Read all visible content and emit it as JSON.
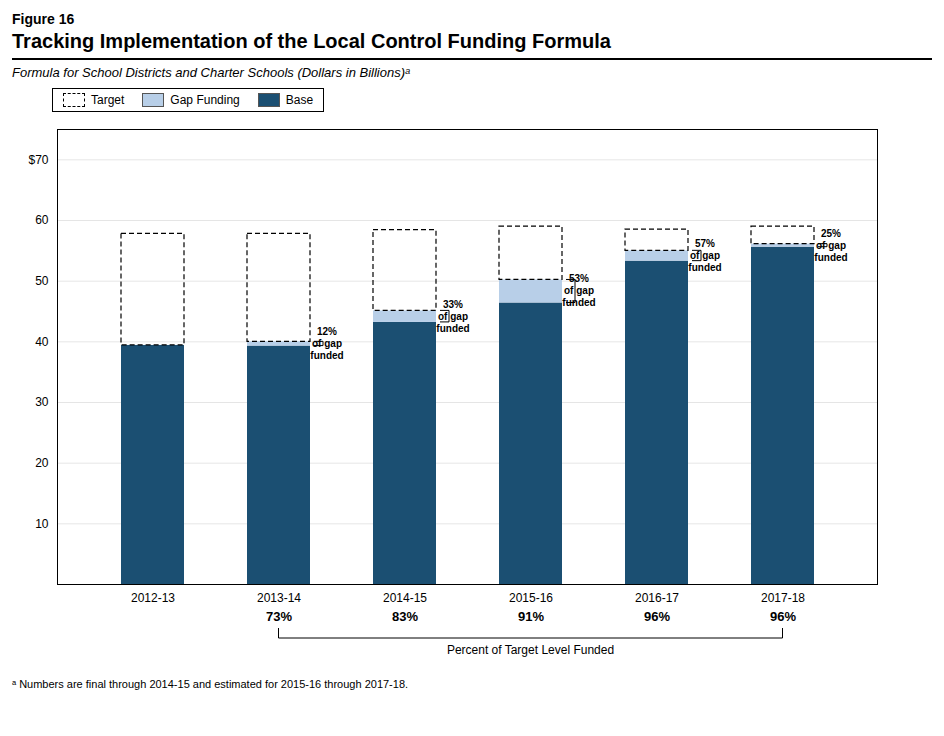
{
  "chart_data": {
    "type": "bar",
    "stacked": true,
    "figure_label": "Figure 16",
    "title": "Tracking Implementation of the Local Control Funding Formula",
    "subtitle": "Formula for School Districts and Charter Schools (Dollars in Billions)ᵃ",
    "footnote": "ᵃ  Numbers are final through 2014-15 and estimated for 2015-16 through 2017-18.",
    "categories": [
      "2012-13",
      "2013-14",
      "2014-15",
      "2015-16",
      "2016-17",
      "2017-18"
    ],
    "series": [
      {
        "name": "Base",
        "color": "#1b4f72",
        "values": [
          39.4,
          39.3,
          43.2,
          46.4,
          53.3,
          55.6
        ]
      },
      {
        "name": "Gap Funding",
        "color": "#b8cfe8",
        "values": [
          0.0,
          0.7,
          1.9,
          3.8,
          1.7,
          0.5
        ]
      },
      {
        "name": "Target",
        "type": "outline",
        "line_style": "dashed",
        "values": [
          57.8,
          57.8,
          58.4,
          59.0,
          58.5,
          59.0
        ]
      }
    ],
    "gap_labels": [
      null,
      "12%\nof gap\nfunded",
      "33%\nof gap\nfunded",
      "53%\nof gap\nfunded",
      "57%\nof gap\nfunded",
      "25%\nof gap\nfunded"
    ],
    "percent_target_labels": [
      null,
      "73%",
      "83%",
      "91%",
      "96%",
      "96%"
    ],
    "percent_target_title": "Percent of Target Level Funded",
    "ylim": [
      0,
      75
    ],
    "yticks": [
      {
        "value": 0,
        "label": ""
      },
      10,
      20,
      30,
      40,
      50,
      60,
      {
        "value": 70,
        "label": "$70"
      }
    ],
    "grid": true,
    "legend": "upper left"
  }
}
